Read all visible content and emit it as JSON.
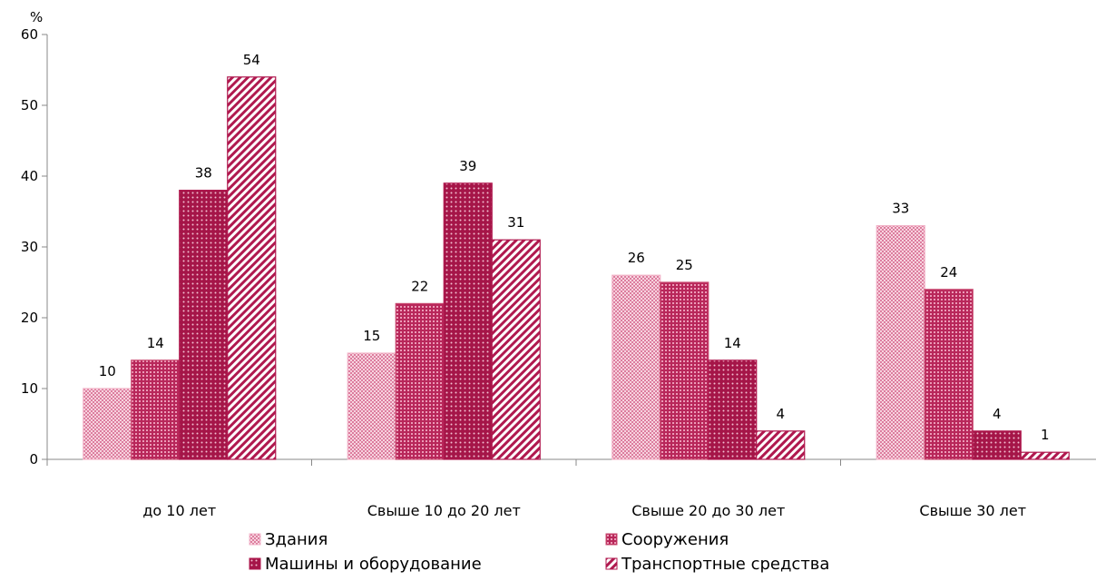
{
  "chart_data": {
    "type": "bar",
    "ylabel": "%",
    "ylim": [
      0,
      60
    ],
    "yticks": [
      0,
      10,
      20,
      30,
      40,
      50,
      60
    ],
    "categories": [
      "до 10 лет",
      "Свыше 10 до 20 лет",
      "Свыше 20 до 30 лет",
      "Свыше 30 лет"
    ],
    "series": [
      {
        "name": "Здания",
        "values": [
          10,
          15,
          26,
          33
        ],
        "pattern": "fine-check",
        "color": "#f2b3c8"
      },
      {
        "name": "Сооружения",
        "values": [
          14,
          22,
          25,
          24
        ],
        "pattern": "grid",
        "color": "#c9486f"
      },
      {
        "name": "Машины и оборудование",
        "values": [
          38,
          39,
          14,
          4
        ],
        "pattern": "dots",
        "color": "#b0194f"
      },
      {
        "name": "Транспортные средства",
        "values": [
          54,
          31,
          4,
          1
        ],
        "pattern": "diagonal",
        "color": "#b0194f"
      }
    ],
    "legend_position": "bottom",
    "grid": false,
    "data_labels": true
  }
}
